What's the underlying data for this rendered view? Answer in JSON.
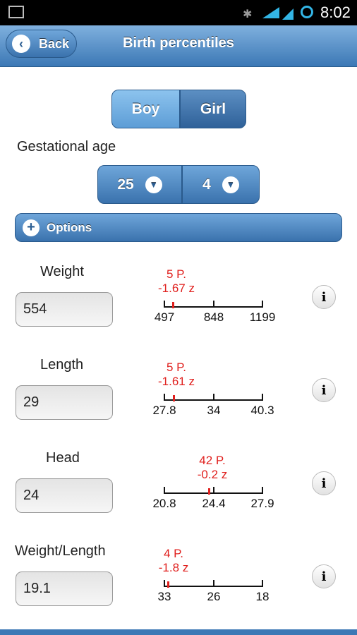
{
  "status_bar": {
    "time": "8:02"
  },
  "header": {
    "back": "Back",
    "title": "Birth percentiles"
  },
  "sex_toggle": [
    "Boy",
    "Girl"
  ],
  "gestational_age": {
    "label": "Gestational age",
    "weeks": "25",
    "days": "4"
  },
  "options": "Options",
  "measurements": [
    {
      "label": "Weight",
      "value": "554",
      "percentile": "5 P.",
      "z": "-1.67 z",
      "scale": [
        "497",
        "848",
        "1199"
      ]
    },
    {
      "label": "Length",
      "value": "29",
      "percentile": "5 P.",
      "z": "-1.61 z",
      "scale": [
        "27.8",
        "34",
        "40.3"
      ]
    },
    {
      "label": "Head",
      "value": "24",
      "percentile": "42 P.",
      "z": "-0.2 z",
      "scale": [
        "20.8",
        "24.4",
        "27.9"
      ]
    },
    {
      "label": "Weight/Length",
      "value": "19.1",
      "percentile": "4 P.",
      "z": "-1.8 z",
      "scale": [
        "33",
        "26",
        "18"
      ]
    }
  ]
}
